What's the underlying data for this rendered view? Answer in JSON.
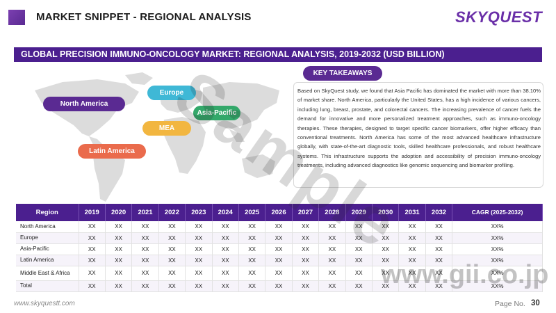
{
  "header": {
    "title": "MARKET SNIPPET - REGIONAL ANALYSIS",
    "logo_text": "SKYQUEST",
    "accent_color": "#5a2a92"
  },
  "section": {
    "title": "GLOBAL PRECISION IMMUNO-ONCOLOGY MARKET: REGIONAL ANALYSIS, 2019-2032 (USD BILLION)"
  },
  "map": {
    "labels": {
      "north_america": "North America",
      "europe": "Europe",
      "asia_pacific": "Asia-Pacific",
      "mea": "MEA",
      "latin_america": "Latin America"
    },
    "colors": {
      "north_america": "#5a2a92",
      "europe": "#3fb8d6",
      "asia_pacific": "#33a86a",
      "mea": "#f2b640",
      "latin_america": "#ea6b4c"
    }
  },
  "key_takeaways": {
    "label": "KEY TAKEAWAYS",
    "text": "Based on SkyQuest study, we found that Asia Pacific has dominated the market with more than 38.10% of market share. North America, particularly the United States, has a high incidence of various cancers, including lung, breast, prostate, and colorectal cancers. The increasing prevalence of cancer fuels the demand for innovative and more personalized treatment approaches, such as immuno-oncology therapies. These therapies, designed to target specific cancer biomarkers, offer higher efficacy than conventional treatments. North America has some of the most advanced healthcare infrastructure globally, with state-of-the-art diagnostic tools, skilled healthcare professionals, and robust healthcare systems. This infrastructure supports the adoption and accessibility of precision immuno-oncology treatments, including advanced diagnostics like genomic sequencing and biomarker profiling."
  },
  "table": {
    "headers": [
      "Region",
      "2019",
      "2020",
      "2021",
      "2022",
      "2023",
      "2024",
      "2025",
      "2026",
      "2027",
      "2028",
      "2029",
      "2030",
      "2031",
      "2032",
      "CAGR (2025-2032)"
    ],
    "rows": [
      [
        "North America",
        "XX",
        "XX",
        "XX",
        "XX",
        "XX",
        "XX",
        "XX",
        "XX",
        "XX",
        "XX",
        "XX",
        "XX",
        "XX",
        "XX",
        "XX%"
      ],
      [
        "Europe",
        "XX",
        "XX",
        "XX",
        "XX",
        "XX",
        "XX",
        "XX",
        "XX",
        "XX",
        "XX",
        "XX",
        "XX",
        "XX",
        "XX",
        "XX%"
      ],
      [
        "Asia-Pacific",
        "XX",
        "XX",
        "XX",
        "XX",
        "XX",
        "XX",
        "XX",
        "XX",
        "XX",
        "XX",
        "XX",
        "XX",
        "XX",
        "XX",
        "XX%"
      ],
      [
        "Latin America",
        "XX",
        "XX",
        "XX",
        "XX",
        "XX",
        "XX",
        "XX",
        "XX",
        "XX",
        "XX",
        "XX",
        "XX",
        "XX",
        "XX",
        "XX%"
      ],
      [
        "Middle East & Africa",
        "XX",
        "XX",
        "XX",
        "XX",
        "XX",
        "XX",
        "XX",
        "XX",
        "XX",
        "XX",
        "XX",
        "XX",
        "XX",
        "XX",
        "XX%"
      ],
      [
        "Total",
        "XX",
        "XX",
        "XX",
        "XX",
        "XX",
        "XX",
        "XX",
        "XX",
        "XX",
        "XX",
        "XX",
        "XX",
        "XX",
        "XX",
        "XX%"
      ]
    ]
  },
  "footer": {
    "url": "www.skyquestt.com",
    "page_label": "Page No.",
    "page_number": "30"
  },
  "watermarks": {
    "sample": "Sample",
    "gii": "www.gii.co.jp"
  }
}
